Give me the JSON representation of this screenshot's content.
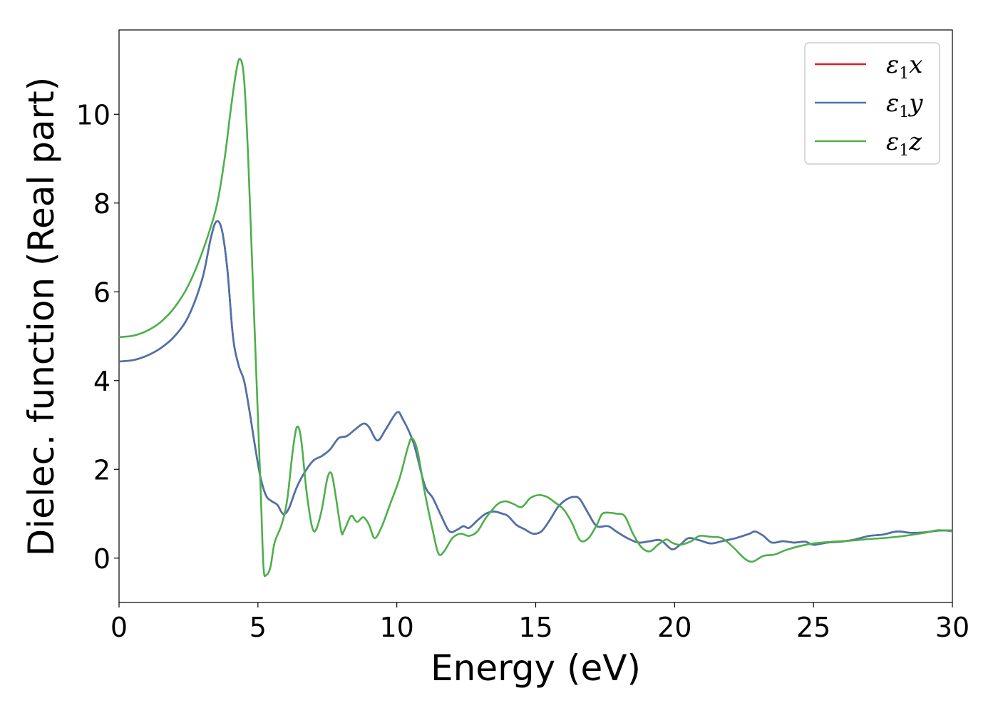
{
  "chart_data": {
    "type": "line",
    "title": "",
    "xlabel": "Energy (eV)",
    "ylabel": "Dielec. function (Real part)",
    "xlim": [
      0,
      30
    ],
    "ylim": [
      -1,
      11.9
    ],
    "xticks": [
      0,
      5,
      10,
      15,
      20,
      25,
      30
    ],
    "yticks": [
      0,
      2,
      4,
      6,
      8,
      10
    ],
    "grid": false,
    "legend_position": "top-right",
    "series": [
      {
        "name": "ε1x",
        "legend_base": "ε",
        "legend_sub": "1",
        "legend_suffix": "x",
        "color": "#e41a1c",
        "points": [
          [
            0,
            4.43
          ],
          [
            0.5,
            4.46
          ],
          [
            1,
            4.56
          ],
          [
            1.5,
            4.73
          ],
          [
            2,
            5.0
          ],
          [
            2.5,
            5.45
          ],
          [
            3.0,
            6.3
          ],
          [
            3.3,
            7.2
          ],
          [
            3.5,
            7.58
          ],
          [
            3.7,
            7.4
          ],
          [
            3.9,
            6.5
          ],
          [
            4.1,
            5.0
          ],
          [
            4.3,
            4.35
          ],
          [
            4.5,
            4.0
          ],
          [
            4.7,
            3.3
          ],
          [
            4.9,
            2.5
          ],
          [
            5.1,
            1.8
          ],
          [
            5.3,
            1.4
          ],
          [
            5.5,
            1.28
          ],
          [
            5.7,
            1.2
          ],
          [
            5.9,
            1.0
          ],
          [
            6.1,
            1.1
          ],
          [
            6.4,
            1.6
          ],
          [
            6.7,
            1.95
          ],
          [
            7.0,
            2.2
          ],
          [
            7.3,
            2.3
          ],
          [
            7.6,
            2.45
          ],
          [
            7.9,
            2.7
          ],
          [
            8.2,
            2.75
          ],
          [
            8.5,
            2.9
          ],
          [
            8.8,
            3.03
          ],
          [
            9.0,
            2.95
          ],
          [
            9.3,
            2.65
          ],
          [
            9.6,
            2.9
          ],
          [
            10.0,
            3.28
          ],
          [
            10.2,
            3.15
          ],
          [
            10.6,
            2.6
          ],
          [
            11.0,
            1.65
          ],
          [
            11.3,
            1.35
          ],
          [
            11.6,
            0.95
          ],
          [
            11.9,
            0.6
          ],
          [
            12.2,
            0.65
          ],
          [
            12.4,
            0.72
          ],
          [
            12.6,
            0.68
          ],
          [
            12.9,
            0.85
          ],
          [
            13.2,
            1.0
          ],
          [
            13.5,
            1.05
          ],
          [
            13.8,
            1.0
          ],
          [
            14.0,
            0.95
          ],
          [
            14.3,
            0.75
          ],
          [
            14.6,
            0.65
          ],
          [
            14.9,
            0.55
          ],
          [
            15.2,
            0.6
          ],
          [
            15.5,
            0.85
          ],
          [
            15.8,
            1.15
          ],
          [
            16.1,
            1.32
          ],
          [
            16.4,
            1.38
          ],
          [
            16.6,
            1.32
          ],
          [
            16.9,
            1.0
          ],
          [
            17.2,
            0.72
          ],
          [
            17.6,
            0.72
          ],
          [
            17.9,
            0.6
          ],
          [
            18.3,
            0.45
          ],
          [
            18.7,
            0.35
          ],
          [
            19.1,
            0.38
          ],
          [
            19.5,
            0.4
          ],
          [
            19.9,
            0.2
          ],
          [
            20.2,
            0.3
          ],
          [
            20.5,
            0.45
          ],
          [
            20.9,
            0.4
          ],
          [
            21.3,
            0.33
          ],
          [
            21.7,
            0.38
          ],
          [
            22.2,
            0.45
          ],
          [
            22.7,
            0.55
          ],
          [
            22.9,
            0.6
          ],
          [
            23.2,
            0.5
          ],
          [
            23.5,
            0.35
          ],
          [
            23.9,
            0.38
          ],
          [
            24.3,
            0.35
          ],
          [
            24.7,
            0.37
          ],
          [
            25.0,
            0.3
          ],
          [
            25.5,
            0.35
          ],
          [
            26.0,
            0.37
          ],
          [
            26.5,
            0.42
          ],
          [
            27.0,
            0.5
          ],
          [
            27.5,
            0.53
          ],
          [
            28.0,
            0.6
          ],
          [
            28.5,
            0.57
          ],
          [
            29.0,
            0.58
          ],
          [
            29.5,
            0.62
          ],
          [
            30.0,
            0.62
          ]
        ]
      },
      {
        "name": "ε1y",
        "legend_base": "ε",
        "legend_sub": "1",
        "legend_suffix": "y",
        "color": "#4a73ad",
        "points": [
          [
            0,
            4.43
          ],
          [
            0.5,
            4.46
          ],
          [
            1,
            4.56
          ],
          [
            1.5,
            4.73
          ],
          [
            2,
            5.0
          ],
          [
            2.5,
            5.45
          ],
          [
            3.0,
            6.3
          ],
          [
            3.3,
            7.2
          ],
          [
            3.5,
            7.58
          ],
          [
            3.7,
            7.4
          ],
          [
            3.9,
            6.5
          ],
          [
            4.1,
            5.0
          ],
          [
            4.3,
            4.35
          ],
          [
            4.5,
            4.0
          ],
          [
            4.7,
            3.3
          ],
          [
            4.9,
            2.5
          ],
          [
            5.1,
            1.8
          ],
          [
            5.3,
            1.4
          ],
          [
            5.5,
            1.28
          ],
          [
            5.7,
            1.2
          ],
          [
            5.9,
            1.0
          ],
          [
            6.1,
            1.1
          ],
          [
            6.4,
            1.6
          ],
          [
            6.7,
            1.95
          ],
          [
            7.0,
            2.2
          ],
          [
            7.3,
            2.3
          ],
          [
            7.6,
            2.45
          ],
          [
            7.9,
            2.7
          ],
          [
            8.2,
            2.75
          ],
          [
            8.5,
            2.9
          ],
          [
            8.8,
            3.03
          ],
          [
            9.0,
            2.95
          ],
          [
            9.3,
            2.65
          ],
          [
            9.6,
            2.9
          ],
          [
            10.0,
            3.28
          ],
          [
            10.2,
            3.15
          ],
          [
            10.6,
            2.6
          ],
          [
            11.0,
            1.65
          ],
          [
            11.3,
            1.35
          ],
          [
            11.6,
            0.95
          ],
          [
            11.9,
            0.6
          ],
          [
            12.2,
            0.65
          ],
          [
            12.4,
            0.72
          ],
          [
            12.6,
            0.68
          ],
          [
            12.9,
            0.85
          ],
          [
            13.2,
            1.0
          ],
          [
            13.5,
            1.05
          ],
          [
            13.8,
            1.0
          ],
          [
            14.0,
            0.95
          ],
          [
            14.3,
            0.75
          ],
          [
            14.6,
            0.65
          ],
          [
            14.9,
            0.55
          ],
          [
            15.2,
            0.6
          ],
          [
            15.5,
            0.85
          ],
          [
            15.8,
            1.15
          ],
          [
            16.1,
            1.32
          ],
          [
            16.4,
            1.38
          ],
          [
            16.6,
            1.32
          ],
          [
            16.9,
            1.0
          ],
          [
            17.2,
            0.72
          ],
          [
            17.6,
            0.72
          ],
          [
            17.9,
            0.6
          ],
          [
            18.3,
            0.45
          ],
          [
            18.7,
            0.35
          ],
          [
            19.1,
            0.38
          ],
          [
            19.5,
            0.4
          ],
          [
            19.9,
            0.2
          ],
          [
            20.2,
            0.3
          ],
          [
            20.5,
            0.45
          ],
          [
            20.9,
            0.4
          ],
          [
            21.3,
            0.33
          ],
          [
            21.7,
            0.38
          ],
          [
            22.2,
            0.45
          ],
          [
            22.7,
            0.55
          ],
          [
            22.9,
            0.6
          ],
          [
            23.2,
            0.5
          ],
          [
            23.5,
            0.35
          ],
          [
            23.9,
            0.38
          ],
          [
            24.3,
            0.35
          ],
          [
            24.7,
            0.37
          ],
          [
            25.0,
            0.3
          ],
          [
            25.5,
            0.35
          ],
          [
            26.0,
            0.37
          ],
          [
            26.5,
            0.42
          ],
          [
            27.0,
            0.5
          ],
          [
            27.5,
            0.53
          ],
          [
            28.0,
            0.6
          ],
          [
            28.5,
            0.57
          ],
          [
            29.0,
            0.58
          ],
          [
            29.5,
            0.62
          ],
          [
            30.0,
            0.62
          ]
        ]
      },
      {
        "name": "ε1z",
        "legend_base": "ε",
        "legend_sub": "1",
        "legend_suffix": "z",
        "color": "#4daf4a",
        "points": [
          [
            0,
            4.98
          ],
          [
            0.5,
            5.01
          ],
          [
            1,
            5.12
          ],
          [
            1.5,
            5.32
          ],
          [
            2,
            5.65
          ],
          [
            2.5,
            6.15
          ],
          [
            3.0,
            6.9
          ],
          [
            3.5,
            7.9
          ],
          [
            3.8,
            9.0
          ],
          [
            4.0,
            10.0
          ],
          [
            4.2,
            10.9
          ],
          [
            4.35,
            11.25
          ],
          [
            4.5,
            10.8
          ],
          [
            4.65,
            9.0
          ],
          [
            4.8,
            6.5
          ],
          [
            4.95,
            4.0
          ],
          [
            5.1,
            1.5
          ],
          [
            5.2,
            -0.2
          ],
          [
            5.3,
            -0.38
          ],
          [
            5.45,
            -0.2
          ],
          [
            5.6,
            0.35
          ],
          [
            5.85,
            0.75
          ],
          [
            6.05,
            1.3
          ],
          [
            6.25,
            2.4
          ],
          [
            6.4,
            2.95
          ],
          [
            6.55,
            2.7
          ],
          [
            6.75,
            1.5
          ],
          [
            6.95,
            0.7
          ],
          [
            7.1,
            0.65
          ],
          [
            7.3,
            1.1
          ],
          [
            7.5,
            1.8
          ],
          [
            7.65,
            1.9
          ],
          [
            7.8,
            1.4
          ],
          [
            8.0,
            0.6
          ],
          [
            8.1,
            0.62
          ],
          [
            8.35,
            0.95
          ],
          [
            8.5,
            0.85
          ],
          [
            8.6,
            0.82
          ],
          [
            8.8,
            0.92
          ],
          [
            9.0,
            0.75
          ],
          [
            9.2,
            0.45
          ],
          [
            9.45,
            0.7
          ],
          [
            9.75,
            1.2
          ],
          [
            10.1,
            1.8
          ],
          [
            10.4,
            2.5
          ],
          [
            10.55,
            2.7
          ],
          [
            10.75,
            2.4
          ],
          [
            11.0,
            1.5
          ],
          [
            11.3,
            0.6
          ],
          [
            11.5,
            0.1
          ],
          [
            11.7,
            0.15
          ],
          [
            12.0,
            0.45
          ],
          [
            12.3,
            0.55
          ],
          [
            12.6,
            0.5
          ],
          [
            12.9,
            0.6
          ],
          [
            13.2,
            0.9
          ],
          [
            13.6,
            1.2
          ],
          [
            13.9,
            1.28
          ],
          [
            14.2,
            1.22
          ],
          [
            14.5,
            1.15
          ],
          [
            14.8,
            1.35
          ],
          [
            15.1,
            1.42
          ],
          [
            15.4,
            1.38
          ],
          [
            15.7,
            1.25
          ],
          [
            16.0,
            1.1
          ],
          [
            16.3,
            0.8
          ],
          [
            16.6,
            0.4
          ],
          [
            16.9,
            0.45
          ],
          [
            17.2,
            0.75
          ],
          [
            17.4,
            1.0
          ],
          [
            17.7,
            1.02
          ],
          [
            17.9,
            1.0
          ],
          [
            18.2,
            0.95
          ],
          [
            18.5,
            0.55
          ],
          [
            18.8,
            0.25
          ],
          [
            19.1,
            0.15
          ],
          [
            19.4,
            0.3
          ],
          [
            19.7,
            0.42
          ],
          [
            19.9,
            0.35
          ],
          [
            20.2,
            0.3
          ],
          [
            20.6,
            0.38
          ],
          [
            20.9,
            0.5
          ],
          [
            21.3,
            0.48
          ],
          [
            21.7,
            0.45
          ],
          [
            22.1,
            0.25
          ],
          [
            22.5,
            0.0
          ],
          [
            22.8,
            -0.08
          ],
          [
            23.2,
            0.05
          ],
          [
            23.6,
            0.08
          ],
          [
            24.0,
            0.18
          ],
          [
            24.5,
            0.27
          ],
          [
            25.0,
            0.33
          ],
          [
            25.5,
            0.36
          ],
          [
            26.0,
            0.38
          ],
          [
            26.5,
            0.4
          ],
          [
            27.0,
            0.43
          ],
          [
            27.5,
            0.45
          ],
          [
            28.0,
            0.48
          ],
          [
            28.5,
            0.52
          ],
          [
            29.0,
            0.57
          ],
          [
            29.5,
            0.63
          ],
          [
            30.0,
            0.6
          ]
        ]
      }
    ]
  }
}
